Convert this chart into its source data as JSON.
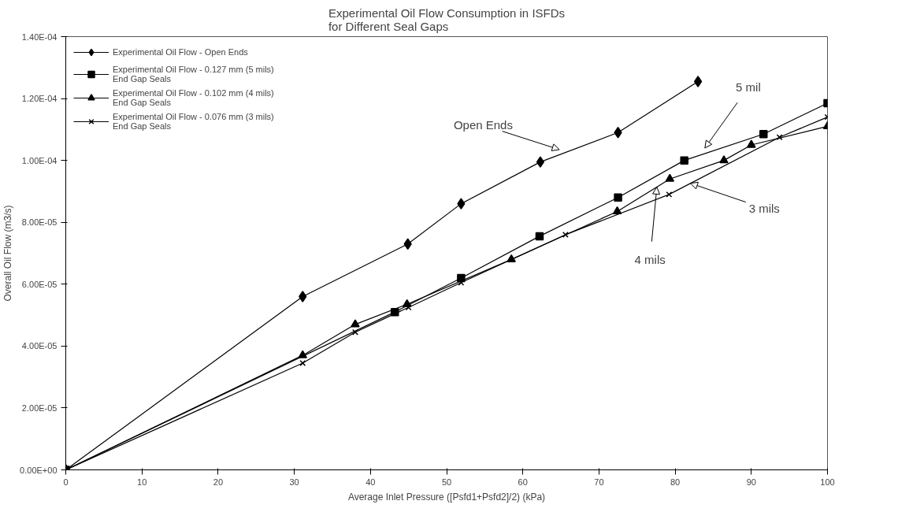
{
  "chart_data": {
    "type": "line",
    "title": "Experimental Oil Flow Consumption in ISFDs\nfor Different Seal Gaps",
    "xlabel": "Average Inlet Pressure ([Psfd1+Psfd2]/2) (kPa)",
    "ylabel": "Overall Oil Flow (m3/s)",
    "xlim": [
      0,
      100
    ],
    "xticks": [
      0,
      10,
      20,
      30,
      40,
      50,
      60,
      70,
      80,
      90,
      100
    ],
    "ylim": [
      0,
      0.00014
    ],
    "yticks": [
      {
        "value": 0,
        "label": "0.00E+00"
      },
      {
        "value": 2e-05,
        "label": "2.00E-05"
      },
      {
        "value": 4e-05,
        "label": "4.00E-05"
      },
      {
        "value": 6e-05,
        "label": "6.00E-05"
      },
      {
        "value": 8e-05,
        "label": "8.00E-05"
      },
      {
        "value": 0.0001,
        "label": "1.00E-04"
      },
      {
        "value": 0.00012,
        "label": "1.20E-04"
      },
      {
        "value": 0.00014,
        "label": "1.40E-04"
      }
    ],
    "grid": false,
    "legend": "top left",
    "line_style": "solid",
    "series": [
      {
        "name": "Experimental Oil Flow - Open Ends",
        "color": "#000000",
        "marker": "diamond",
        "x": [
          0,
          31.1,
          44.9,
          51.9,
          62.3,
          72.5,
          83.0
        ],
        "values": [
          0,
          5.6e-05,
          7.3e-05,
          8.6e-05,
          9.95e-05,
          0.000109,
          0.0001255
        ]
      },
      {
        "name": "Experimental Oil Flow - 0.127 mm (5 mils)\nEnd Gap Seals",
        "color": "#000000",
        "marker": "square",
        "x": [
          0,
          43.2,
          51.9,
          62.2,
          72.5,
          81.2,
          91.6,
          100
        ],
        "values": [
          0,
          5.1e-05,
          6.2e-05,
          7.55e-05,
          8.8e-05,
          0.0001,
          0.0001085,
          0.0001185
        ]
      },
      {
        "name": "Experimental Oil Flow - 0.102 mm (4 mils)\nEnd Gap Seals",
        "color": "#000000",
        "marker": "triangle",
        "x": [
          0,
          31.1,
          38,
          44.8,
          58.5,
          72.4,
          79.3,
          86.4,
          90,
          100
        ],
        "values": [
          0,
          3.7e-05,
          4.7e-05,
          5.35e-05,
          6.8e-05,
          8.35e-05,
          9.4e-05,
          0.0001,
          0.000105,
          0.000111
        ]
      },
      {
        "name": "Experimental Oil Flow - 0.076 mm (3 mils)\nEnd Gap Seals",
        "color": "#000000",
        "marker": "cross",
        "x": [
          0,
          31.1,
          38,
          45,
          51.9,
          65.6,
          79.2,
          93.7,
          100
        ],
        "values": [
          0,
          3.45e-05,
          4.45e-05,
          5.25e-05,
          6.05e-05,
          7.6e-05,
          8.9e-05,
          0.0001075,
          0.000114
        ]
      }
    ],
    "annotations": [
      "Open Ends",
      "5 mil",
      {
        "text": "3 mils",
        "x": 82,
        "y": 9.26e-05
      },
      {
        "text": "4 mils",
        "x": 77.6,
        "y": 9.14e-05
      }
    ]
  }
}
